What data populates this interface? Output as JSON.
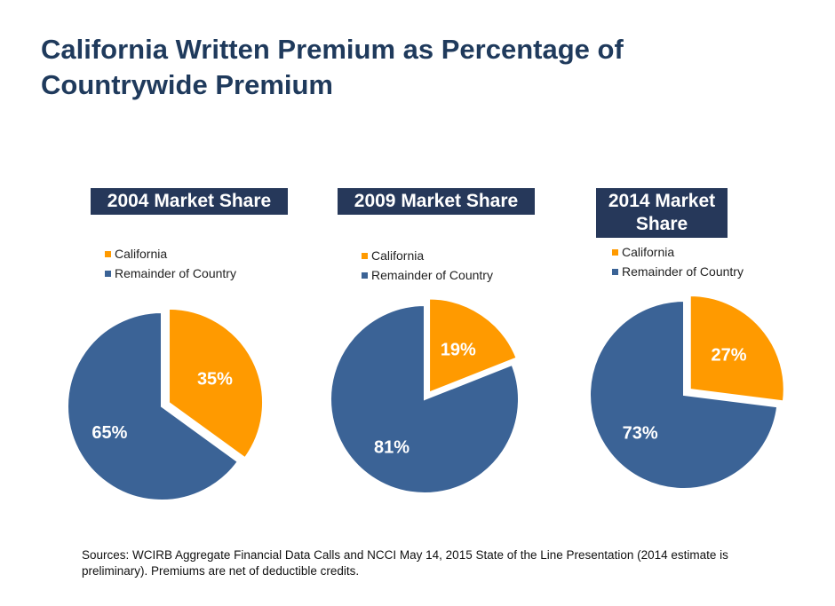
{
  "page": {
    "title": "California Written Premium as Percentage of Countrywide Premium",
    "source_note": "Sources: WCIRB Aggregate Financial Data Calls and NCCI May 14, 2015 State of the Line Presentation (2014 estimate is preliminary). Premiums are net of deductible credits."
  },
  "colors": {
    "California": "#ff9a00",
    "Remainder of Country": "#3b6396",
    "heading_bg": "#26385a",
    "title": "#1f3a5c"
  },
  "chart_data": [
    {
      "type": "pie",
      "title": "2004 Market Share",
      "legend": [
        "California",
        "Remainder of Country"
      ],
      "legend_position": "top",
      "slices": [
        {
          "label": "California",
          "value": 35,
          "display": "35%"
        },
        {
          "label": "Remainder of Country",
          "value": 65,
          "display": "65%"
        }
      ]
    },
    {
      "type": "pie",
      "title": "2009 Market Share",
      "legend": [
        "California",
        "Remainder of Country"
      ],
      "legend_position": "top",
      "slices": [
        {
          "label": "California",
          "value": 19,
          "display": "19%"
        },
        {
          "label": "Remainder of Country",
          "value": 81,
          "display": "81%"
        }
      ]
    },
    {
      "type": "pie",
      "title": "2014 Market Share",
      "legend": [
        "California",
        "Remainder of Country"
      ],
      "legend_position": "top",
      "slices": [
        {
          "label": "California",
          "value": 27,
          "display": "27%"
        },
        {
          "label": "Remainder of Country",
          "value": 73,
          "display": "73%"
        }
      ]
    }
  ]
}
